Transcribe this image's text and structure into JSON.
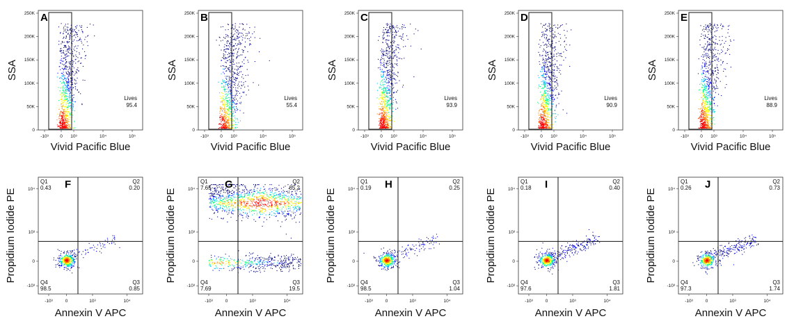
{
  "figure": {
    "colors": {
      "axis": "#333333",
      "gate": "#111111",
      "scale": [
        "#00007f",
        "#0000ff",
        "#00bfff",
        "#00ff7f",
        "#ffff00",
        "#ff7f00",
        "#ff0000"
      ]
    }
  },
  "chart_data": [
    {
      "type": "scatter",
      "panel": "A",
      "xlabel": "Vivid Pacific Blue",
      "ylabel": "SSA",
      "x_ticks": [
        "-10³",
        "0",
        "10³",
        "10⁴",
        "10⁵"
      ],
      "y_ticks": [
        "0",
        "50K",
        "100K",
        "150K",
        "200K",
        "250K"
      ],
      "gate": {
        "label": "Lives",
        "value": "95.4"
      },
      "population": {
        "spread": 0.25,
        "ymax": 230000
      }
    },
    {
      "type": "scatter",
      "panel": "B",
      "xlabel": "Vivid Pacific Blue",
      "ylabel": "SSA",
      "x_ticks": [
        "-10³",
        "0",
        "10³",
        "10⁴",
        "10⁵"
      ],
      "y_ticks": [
        "0",
        "50K",
        "100K",
        "150K",
        "200K",
        "250K"
      ],
      "gate": {
        "label": "Lives",
        "value": "55.4"
      },
      "population": {
        "spread": 0.7,
        "ymax": 250000
      }
    },
    {
      "type": "scatter",
      "panel": "C",
      "xlabel": "Vivid Pacific Blue",
      "ylabel": "SSA",
      "x_ticks": [
        "-10³",
        "0",
        "10³",
        "10⁴",
        "10⁵"
      ],
      "y_ticks": [
        "0",
        "50K",
        "100K",
        "150K",
        "200K",
        "250K"
      ],
      "gate": {
        "label": "Lives",
        "value": "93.9"
      },
      "population": {
        "spread": 0.25,
        "ymax": 240000
      }
    },
    {
      "type": "scatter",
      "panel": "D",
      "xlabel": "Vivid Pacific Blue",
      "ylabel": "SSA",
      "x_ticks": [
        "-10³",
        "0",
        "10³",
        "10⁴",
        "10⁵"
      ],
      "y_ticks": [
        "0",
        "50K",
        "100K",
        "150K",
        "200K",
        "250K"
      ],
      "gate": {
        "label": "Lives",
        "value": "90.9"
      },
      "population": {
        "spread": 0.3,
        "ymax": 245000
      }
    },
    {
      "type": "scatter",
      "panel": "E",
      "xlabel": "Vivid Pacific Blue",
      "ylabel": "SSA",
      "x_ticks": [
        "-10³",
        "0",
        "10³",
        "10⁴",
        "10⁵"
      ],
      "y_ticks": [
        "0",
        "50K",
        "100K",
        "150K",
        "200K",
        "250K"
      ],
      "gate": {
        "label": "Lives",
        "value": "88.9"
      },
      "population": {
        "spread": 0.38,
        "ymax": 240000
      }
    },
    {
      "type": "scatter",
      "panel": "F",
      "xlabel": "Annexin V APC",
      "ylabel": "Propidium Iodide PE",
      "x_ticks": [
        "-10³",
        "0",
        "10³",
        "10⁴"
      ],
      "y_ticks": [
        "-10³",
        "0",
        "10³",
        "10⁴"
      ],
      "quadrants": {
        "Q1": "0.43",
        "Q2": "0.20",
        "Q3": "0.85",
        "Q4": "98.5"
      },
      "population": {
        "kind": "viable",
        "tail": 0.1
      }
    },
    {
      "type": "scatter",
      "panel": "G",
      "xlabel": "Annexin V APC",
      "ylabel": "Propidium Iodide PE",
      "x_ticks": [
        "-10³",
        "0",
        "10³",
        "10⁴"
      ],
      "y_ticks": [
        "-10³",
        "0",
        "10³",
        "10⁴"
      ],
      "quadrants": {
        "Q1": "7.65",
        "Q2": "65.2",
        "Q3": "19.5",
        "Q4": "7.69"
      },
      "population": {
        "kind": "dead",
        "tail": 0
      }
    },
    {
      "type": "scatter",
      "panel": "H",
      "xlabel": "Annexin V APC",
      "ylabel": "Propidium Iodide PE",
      "x_ticks": [
        "-10³",
        "0",
        "10³",
        "10⁴"
      ],
      "y_ticks": [
        "-10³",
        "0",
        "10³",
        "10⁴"
      ],
      "quadrants": {
        "Q1": "0.19",
        "Q2": "0.25",
        "Q3": "1.04",
        "Q4": "98.5"
      },
      "population": {
        "kind": "viable",
        "tail": 0.15
      }
    },
    {
      "type": "scatter",
      "panel": "I",
      "xlabel": "Annexin V APC",
      "ylabel": "Propidium Iodide PE",
      "x_ticks": [
        "-10³",
        "0",
        "10³",
        "10⁴"
      ],
      "y_ticks": [
        "-10³",
        "0",
        "10³",
        "10⁴"
      ],
      "quadrants": {
        "Q1": "0.18",
        "Q2": "0.40",
        "Q3": "1.81",
        "Q4": "97.6"
      },
      "population": {
        "kind": "viable",
        "tail": 0.3
      }
    },
    {
      "type": "scatter",
      "panel": "J",
      "xlabel": "Annexin V APC",
      "ylabel": "Propidium Iodide PE",
      "x_ticks": [
        "-10³",
        "0",
        "10³",
        "10⁴"
      ],
      "y_ticks": [
        "-10³",
        "0",
        "10³",
        "10⁴"
      ],
      "quadrants": {
        "Q1": "0.26",
        "Q2": "0.73",
        "Q3": "1.74",
        "Q4": "97.3"
      },
      "population": {
        "kind": "viable",
        "tail": 0.3
      }
    }
  ]
}
